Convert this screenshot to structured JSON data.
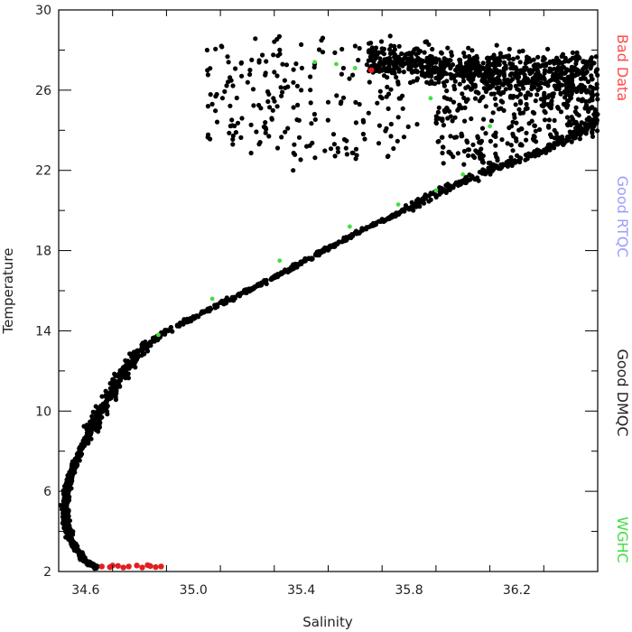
{
  "chart_data": {
    "type": "scatter",
    "title": "",
    "xlabel": "Salinity",
    "ylabel": "Temperature",
    "xlim": [
      34.5,
      36.5
    ],
    "ylim": [
      2,
      30
    ],
    "xticks": [
      "34.6",
      "35.0",
      "35.4",
      "35.8",
      "36.2"
    ],
    "yticks": [
      "2",
      "6",
      "10",
      "14",
      "18",
      "22",
      "26",
      "30"
    ],
    "grid": false,
    "legend": {
      "placement": "right, vertical",
      "entries": [
        {
          "label": "Bad Data",
          "color": "#ff4a4a"
        },
        {
          "label": "Good RTQC",
          "color": "#9c9cff"
        },
        {
          "label": "Good DMQC",
          "color": "#222222"
        },
        {
          "label": "WGHC",
          "color": "#44dd44"
        }
      ]
    },
    "series": [
      {
        "name": "Good DMQC",
        "color": "#000000",
        "curve": [
          [
            34.64,
            2.2
          ],
          [
            34.6,
            2.5
          ],
          [
            34.57,
            3.0
          ],
          [
            34.545,
            3.6
          ],
          [
            34.53,
            4.2
          ],
          [
            34.525,
            4.8
          ],
          [
            34.525,
            5.4
          ],
          [
            34.53,
            6.0
          ],
          [
            34.55,
            7.0
          ],
          [
            34.58,
            8.0
          ],
          [
            34.62,
            9.0
          ],
          [
            34.66,
            10.0
          ],
          [
            34.7,
            11.0
          ],
          [
            34.74,
            12.0
          ],
          [
            34.8,
            13.0
          ],
          [
            34.9,
            14.0
          ],
          [
            35.05,
            15.0
          ],
          [
            35.2,
            16.0
          ],
          [
            35.35,
            17.0
          ],
          [
            35.48,
            18.0
          ],
          [
            35.62,
            19.0
          ],
          [
            35.78,
            20.0
          ],
          [
            35.92,
            21.0
          ],
          [
            36.1,
            22.0
          ],
          [
            36.3,
            23.0
          ],
          [
            36.45,
            24.0
          ],
          [
            36.5,
            24.8
          ]
        ],
        "upper_cloud": {
          "salinity_range": [
            35.05,
            36.5
          ],
          "temperature_range": [
            22.0,
            29.0
          ]
        },
        "samples": [
          [
            35.07,
            25.3
          ],
          [
            35.13,
            27.4
          ],
          [
            35.18,
            24.6
          ],
          [
            35.21,
            27.0
          ],
          [
            35.25,
            25.1
          ],
          [
            35.28,
            23.7
          ],
          [
            35.3,
            26.9
          ],
          [
            35.32,
            28.0
          ],
          [
            35.35,
            24.1
          ],
          [
            35.37,
            22.0
          ],
          [
            35.4,
            26.0
          ],
          [
            35.42,
            23.2
          ],
          [
            35.45,
            27.3
          ],
          [
            35.48,
            28.6
          ],
          [
            35.5,
            25.4
          ],
          [
            35.52,
            23.8
          ],
          [
            35.55,
            26.8
          ],
          [
            35.57,
            22.8
          ],
          [
            35.6,
            28.2
          ],
          [
            35.63,
            24.5
          ],
          [
            35.66,
            27.2
          ],
          [
            35.7,
            25.6
          ],
          [
            35.73,
            28.7
          ],
          [
            35.76,
            26.3
          ],
          [
            35.8,
            27.8
          ],
          [
            35.83,
            24.3
          ],
          [
            35.86,
            28.4
          ],
          [
            35.9,
            26.6
          ],
          [
            35.94,
            27.5
          ],
          [
            35.98,
            25.0
          ],
          [
            36.02,
            28.1
          ],
          [
            36.06,
            23.4
          ],
          [
            36.1,
            27.0
          ],
          [
            36.14,
            25.8
          ],
          [
            36.18,
            24.2
          ],
          [
            36.22,
            26.4
          ],
          [
            36.26,
            24.9
          ],
          [
            36.3,
            25.6
          ],
          [
            36.34,
            24.0
          ],
          [
            36.38,
            25.3
          ],
          [
            36.42,
            24.4
          ],
          [
            36.46,
            25.1
          ]
        ]
      },
      {
        "name": "WGHC",
        "color": "#44dd44",
        "points": [
          [
            34.87,
            13.8
          ],
          [
            35.07,
            15.6
          ],
          [
            35.32,
            17.5
          ],
          [
            35.58,
            19.2
          ],
          [
            35.76,
            20.3
          ],
          [
            35.9,
            21.0
          ],
          [
            36.0,
            21.8
          ],
          [
            36.1,
            24.2
          ],
          [
            35.88,
            25.6
          ],
          [
            35.6,
            27.1
          ],
          [
            35.53,
            27.3
          ],
          [
            35.45,
            27.4
          ]
        ]
      },
      {
        "name": "Bad Data",
        "color": "#e02020",
        "points": [
          [
            34.66,
            2.25
          ],
          [
            34.69,
            2.22
          ],
          [
            34.72,
            2.28
          ],
          [
            34.74,
            2.2
          ],
          [
            34.76,
            2.25
          ],
          [
            34.79,
            2.3
          ],
          [
            34.81,
            2.2
          ],
          [
            34.84,
            2.27
          ],
          [
            34.86,
            2.22
          ],
          [
            34.88,
            2.25
          ],
          [
            34.7,
            2.3
          ],
          [
            34.83,
            2.32
          ],
          [
            35.66,
            27.0
          ]
        ]
      }
    ]
  }
}
